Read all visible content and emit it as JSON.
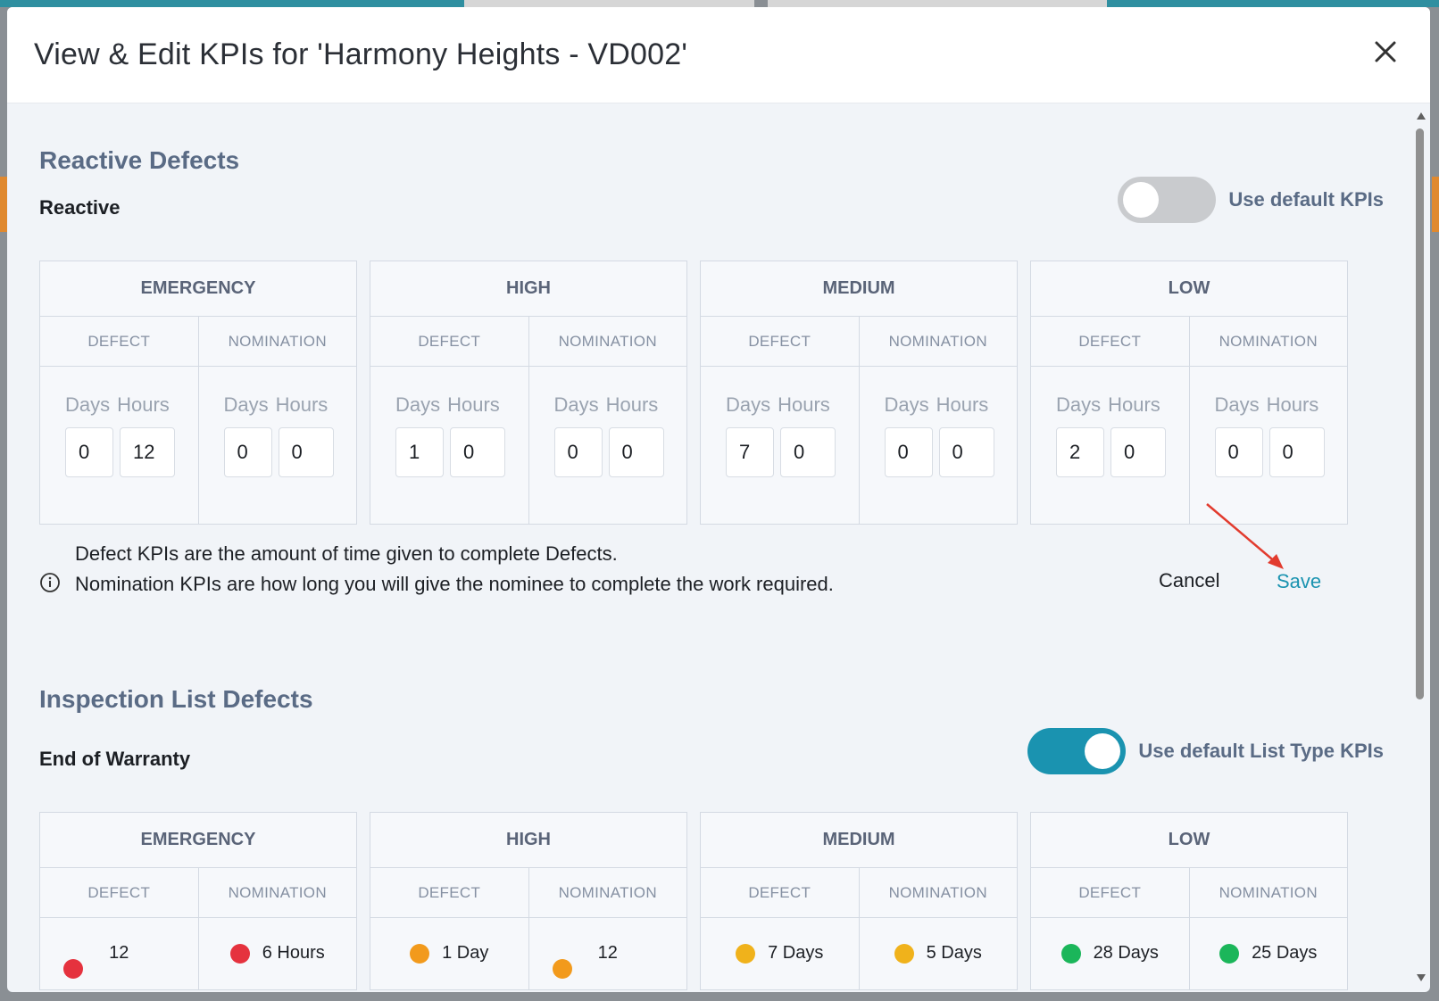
{
  "modal": {
    "title": "View & Edit KPIs for 'Harmony Heights - VD002'"
  },
  "reactive": {
    "section_title": "Reactive Defects",
    "row_label": "Reactive",
    "toggle_label": "Use default KPIs",
    "toggle_on": false,
    "groups": [
      {
        "label": "EMERGENCY",
        "defect": {
          "days": "0",
          "hours": "12"
        },
        "nomination": {
          "days": "0",
          "hours": "0"
        }
      },
      {
        "label": "HIGH",
        "defect": {
          "days": "1",
          "hours": "0"
        },
        "nomination": {
          "days": "0",
          "hours": "0"
        }
      },
      {
        "label": "MEDIUM",
        "defect": {
          "days": "7",
          "hours": "0"
        },
        "nomination": {
          "days": "0",
          "hours": "0"
        }
      },
      {
        "label": "LOW",
        "defect": {
          "days": "2",
          "hours": "0"
        },
        "nomination": {
          "days": "0",
          "hours": "0"
        }
      }
    ]
  },
  "columns": {
    "defect": "DEFECT",
    "nomination": "NOMINATION",
    "days": "Days",
    "hours": "Hours"
  },
  "info": {
    "line1": "Defect KPIs are the amount of time given to complete Defects.",
    "line2": "Nomination KPIs are how long you will give the nominee to complete the work required."
  },
  "actions": {
    "cancel": "Cancel",
    "save": "Save"
  },
  "inspection": {
    "section_title": "Inspection List Defects",
    "row_label": "End of Warranty",
    "toggle_label": "Use default List Type KPIs",
    "toggle_on": true,
    "groups": [
      {
        "label": "EMERGENCY",
        "defect": "12",
        "nomination": "6 Hours"
      },
      {
        "label": "HIGH",
        "defect": "1 Day",
        "nomination": "12"
      },
      {
        "label": "MEDIUM",
        "defect": "7 Days",
        "nomination": "5 Days"
      },
      {
        "label": "LOW",
        "defect": "28 Days",
        "nomination": "25 Days"
      }
    ]
  },
  "colors": {
    "accent": "#1a93b0",
    "emergency": "#e5323e",
    "high": "#f29a1c",
    "medium": "#f0b21b",
    "low": "#1bb65a"
  }
}
